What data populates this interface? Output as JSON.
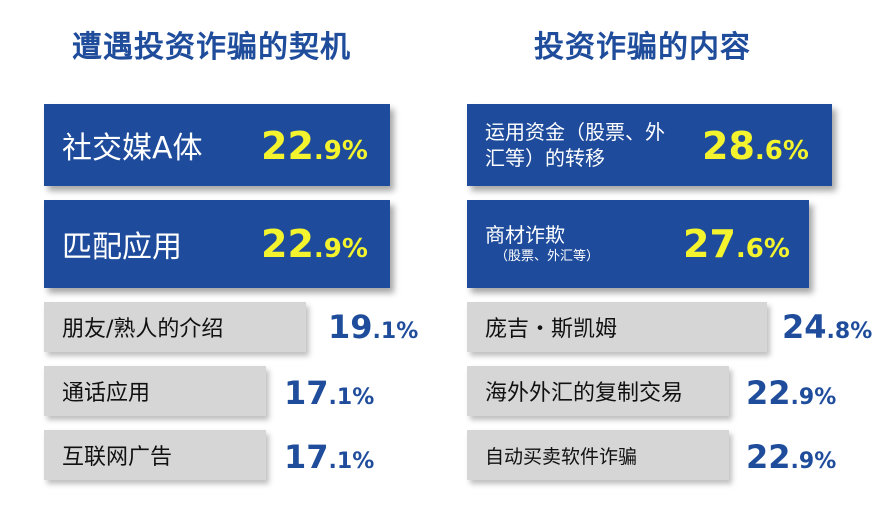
{
  "chart_data": [
    {
      "type": "table",
      "title": "遭遇投资诈骗的契机",
      "rows": [
        {
          "label": "社交媒A体",
          "value": 22.9,
          "int": "22",
          "dec": ".9%"
        },
        {
          "label": "匹配应用",
          "value": 22.9,
          "int": "22",
          "dec": ".9%"
        },
        {
          "label": "朋友/熟人的介绍",
          "value": 19.1,
          "int": "19",
          "dec": ".1%"
        },
        {
          "label": "通话应用",
          "value": 17.1,
          "int": "17",
          "dec": ".1%"
        },
        {
          "label": "互联网广告",
          "value": 17.1,
          "int": "17",
          "dec": ".1%"
        }
      ]
    },
    {
      "type": "table",
      "title": "投资诈骗的内容",
      "rows": [
        {
          "label": "运用资金（股票、外汇等）的转移",
          "value": 28.6,
          "int": "28",
          "dec": ".6%"
        },
        {
          "label": "商材诈欺",
          "sublabel": "（股票、外汇等）",
          "value": 27.6,
          "int": "27",
          "dec": ".6%"
        },
        {
          "label": "庞吉・斯凯姆",
          "value": 24.8,
          "int": "24",
          "dec": ".8%"
        },
        {
          "label": "海外外汇的复制交易",
          "value": 22.9,
          "int": "22",
          "dec": ".9%"
        },
        {
          "label": "自动买卖软件诈骗",
          "value": 22.9,
          "int": "22",
          "dec": ".9%"
        }
      ]
    }
  ],
  "colors": {
    "primary_box": "#1e4b9b",
    "secondary_box": "#d6d6d6",
    "highlight_value": "#f3f32e",
    "normal_value": "#1f4d9c",
    "title": "#1f4d9c"
  }
}
